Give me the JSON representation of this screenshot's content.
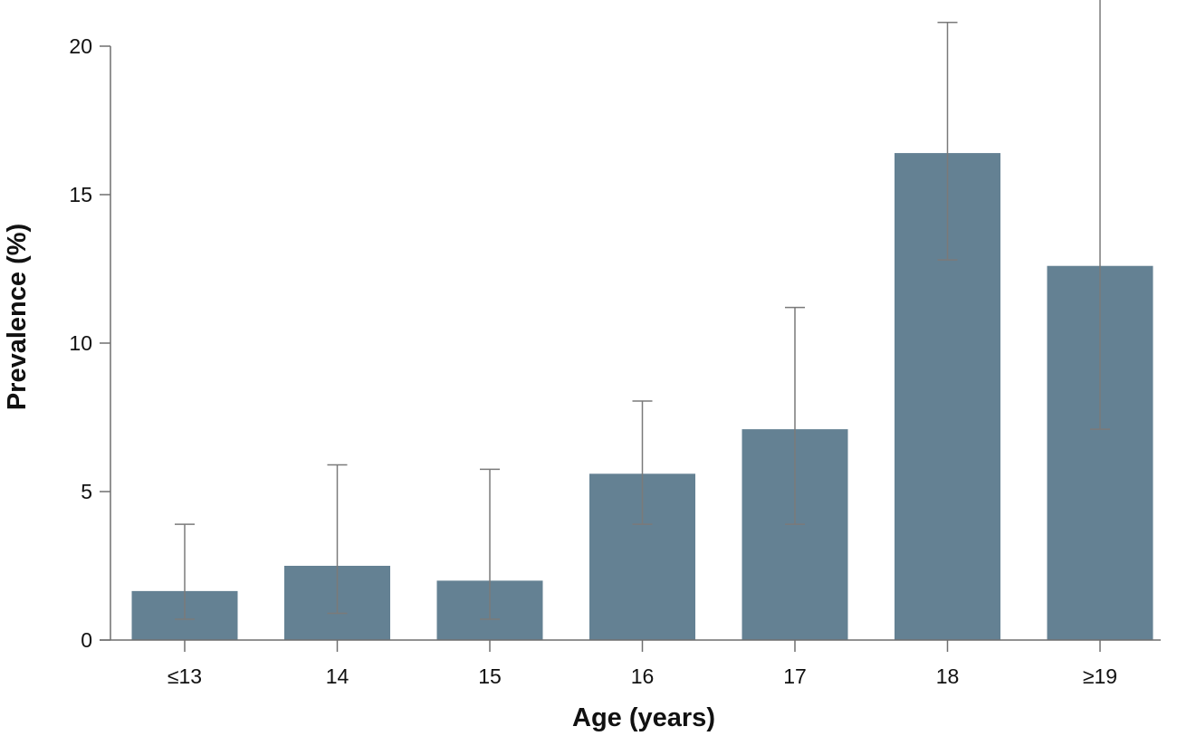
{
  "chart_data": {
    "type": "bar",
    "title": "",
    "xlabel": "Age (years)",
    "ylabel": "Prevalence (%)",
    "categories": [
      "≤13",
      "14",
      "15",
      "16",
      "17",
      "18",
      "≥19"
    ],
    "values": [
      1.65,
      2.5,
      2.0,
      5.6,
      7.1,
      16.4,
      12.6
    ],
    "error_lower": [
      0.7,
      0.9,
      0.7,
      3.9,
      3.9,
      12.8,
      7.1
    ],
    "error_upper": [
      3.9,
      5.9,
      5.75,
      8.05,
      11.2,
      20.8,
      21.6
    ],
    "ylim": [
      0,
      20
    ],
    "yticks": [
      0,
      5,
      10,
      15,
      20
    ],
    "grid": false,
    "legend": "none",
    "bar_color": "#648193",
    "error_color": "#7a7a7a"
  }
}
